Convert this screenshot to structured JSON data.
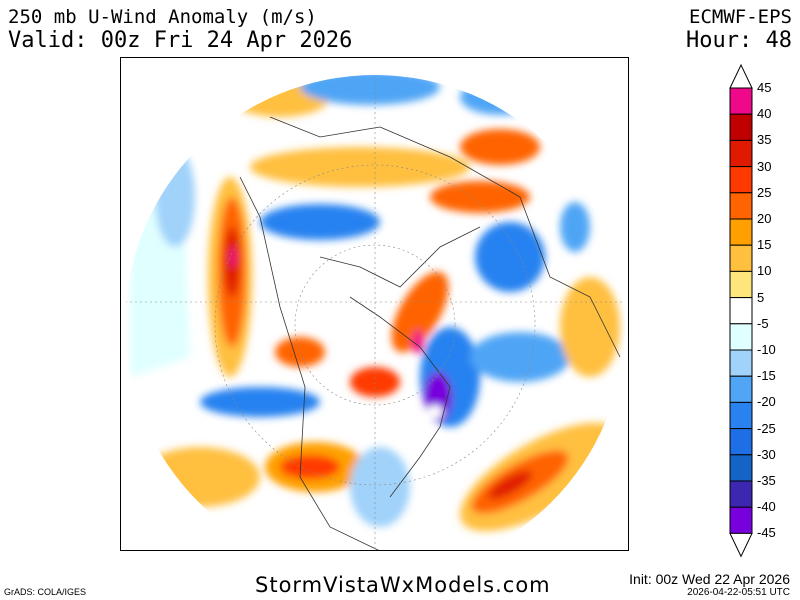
{
  "header": {
    "title": "250 mb U-Wind Anomaly (m/s)",
    "valid": "Valid: 00z Fri 24 Apr 2026",
    "model": "ECMWF-EPS",
    "hour": "Hour: 48"
  },
  "footer": {
    "grads": "GrADS: COLA/IGES",
    "brand": "StormVistaWxModels.com",
    "init": "Init: 00z Wed 22 Apr 2026",
    "stamp": "2026-04-22-05:51 UTC"
  },
  "colorbar": {
    "labels": [
      "45",
      "40",
      "35",
      "30",
      "25",
      "20",
      "15",
      "10",
      "5",
      "-5",
      "-10",
      "-15",
      "-20",
      "-25",
      "-30",
      "-35",
      "-40",
      "-45"
    ],
    "colors": [
      "#f0088a",
      "#c00000",
      "#e01a00",
      "#ff3a00",
      "#ff6400",
      "#ffa000",
      "#ffc040",
      "#ffe67c",
      "#ffffff",
      "#e0ffff",
      "#a0d2fa",
      "#50a5f5",
      "#2882f0",
      "#1e6ee6",
      "#1464c8",
      "#3c28b0",
      "#7800dc"
    ]
  }
}
